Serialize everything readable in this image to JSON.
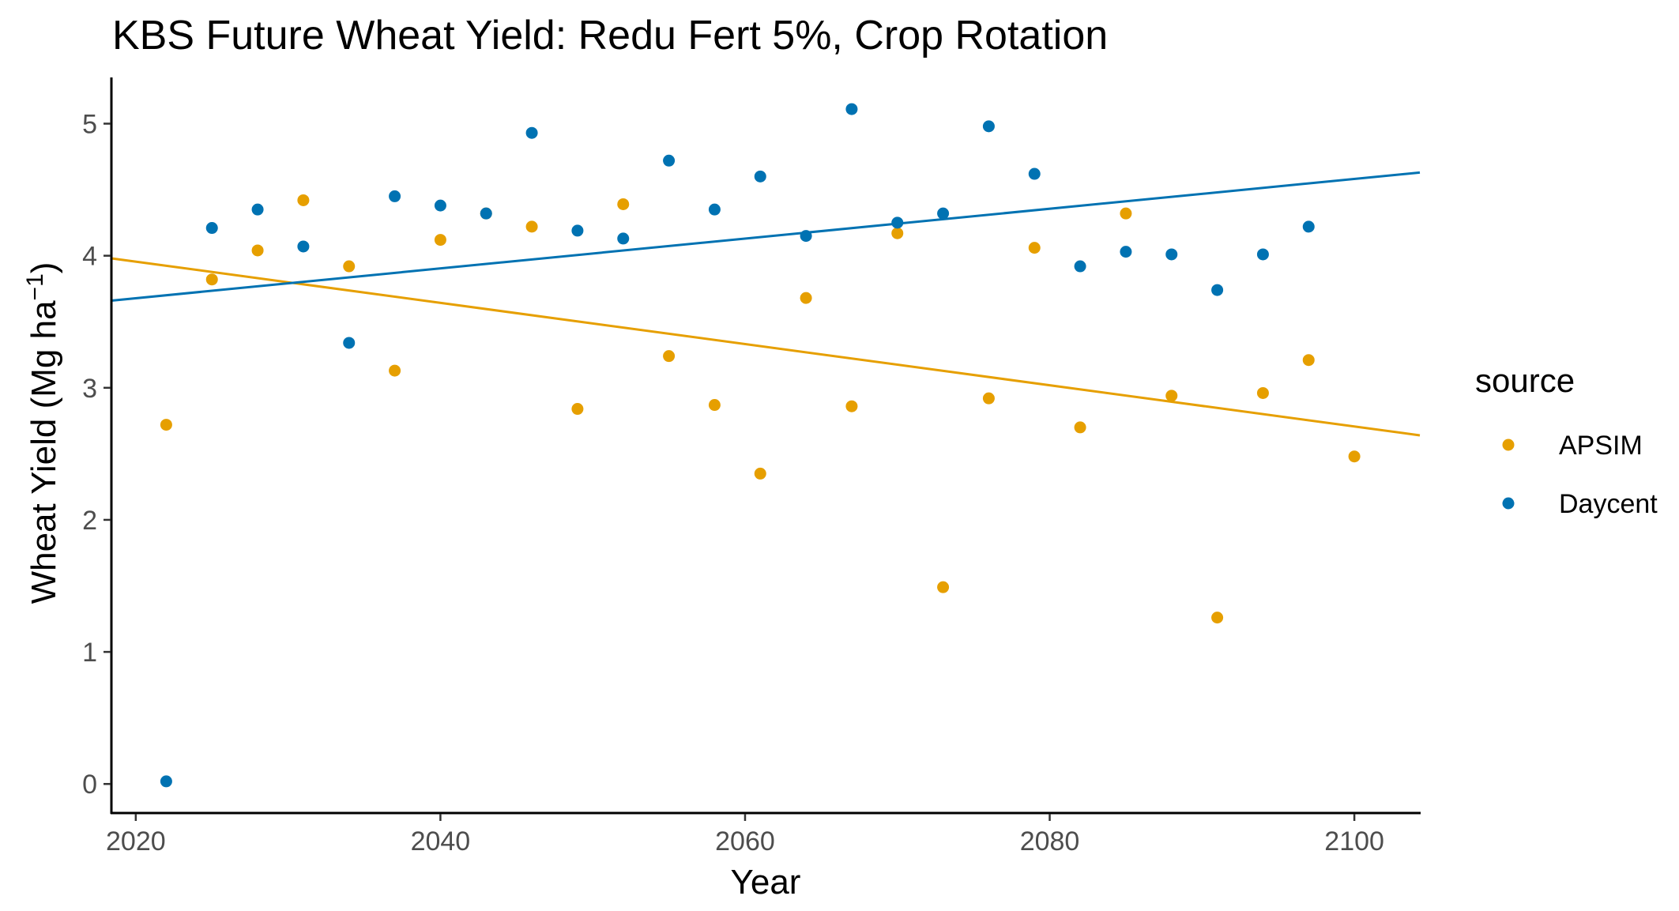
{
  "chart_data": {
    "type": "scatter",
    "title": "KBS Future Wheat Yield:  Redu Fert 5%, Crop Rotation",
    "xlabel": "Year",
    "ylabel": "Wheat Yield (Mg ha",
    "ylabel_superscript": "−1",
    "ylabel_close": ")",
    "xlim": [
      2018.4,
      2104.3
    ],
    "ylim": [
      -0.22,
      5.35
    ],
    "xticks": [
      2020,
      2040,
      2060,
      2080,
      2100
    ],
    "yticks": [
      0,
      1,
      2,
      3,
      4,
      5
    ],
    "grid": false,
    "legend": {
      "title": "source",
      "position": "right"
    },
    "series": [
      {
        "name": "APSIM",
        "color": "#E69F00",
        "x": [
          2022,
          2025,
          2028,
          2031,
          2034,
          2037,
          2040,
          2043,
          2046,
          2049,
          2052,
          2055,
          2058,
          2061,
          2064,
          2067,
          2070,
          2073,
          2076,
          2079,
          2082,
          2085,
          2088,
          2091,
          2094,
          2097,
          2100
        ],
        "y": [
          2.72,
          3.82,
          4.04,
          4.42,
          3.92,
          3.13,
          4.12,
          4.32,
          4.22,
          2.84,
          4.39,
          3.24,
          2.87,
          2.35,
          3.68,
          2.86,
          4.17,
          1.49,
          2.92,
          4.06,
          2.7,
          4.32,
          2.94,
          1.26,
          2.96,
          3.21,
          2.48
        ],
        "trend": {
          "x": [
            2018.4,
            2104.3
          ],
          "y": [
            3.98,
            2.64
          ]
        }
      },
      {
        "name": "Daycent",
        "color": "#0072B2",
        "x": [
          2022,
          2025,
          2028,
          2031,
          2034,
          2037,
          2040,
          2043,
          2046,
          2049,
          2052,
          2055,
          2058,
          2061,
          2064,
          2067,
          2070,
          2073,
          2076,
          2079,
          2082,
          2085,
          2088,
          2091,
          2094,
          2097
        ],
        "y": [
          0.02,
          4.21,
          4.35,
          4.07,
          3.34,
          4.45,
          4.38,
          4.32,
          4.93,
          4.19,
          4.13,
          4.72,
          4.35,
          4.6,
          4.15,
          5.11,
          4.25,
          4.32,
          4.98,
          4.62,
          3.92,
          4.03,
          4.01,
          3.74,
          4.01,
          4.22
        ],
        "trend": {
          "x": [
            2018.4,
            2104.3
          ],
          "y": [
            3.66,
            4.63
          ]
        }
      }
    ]
  }
}
